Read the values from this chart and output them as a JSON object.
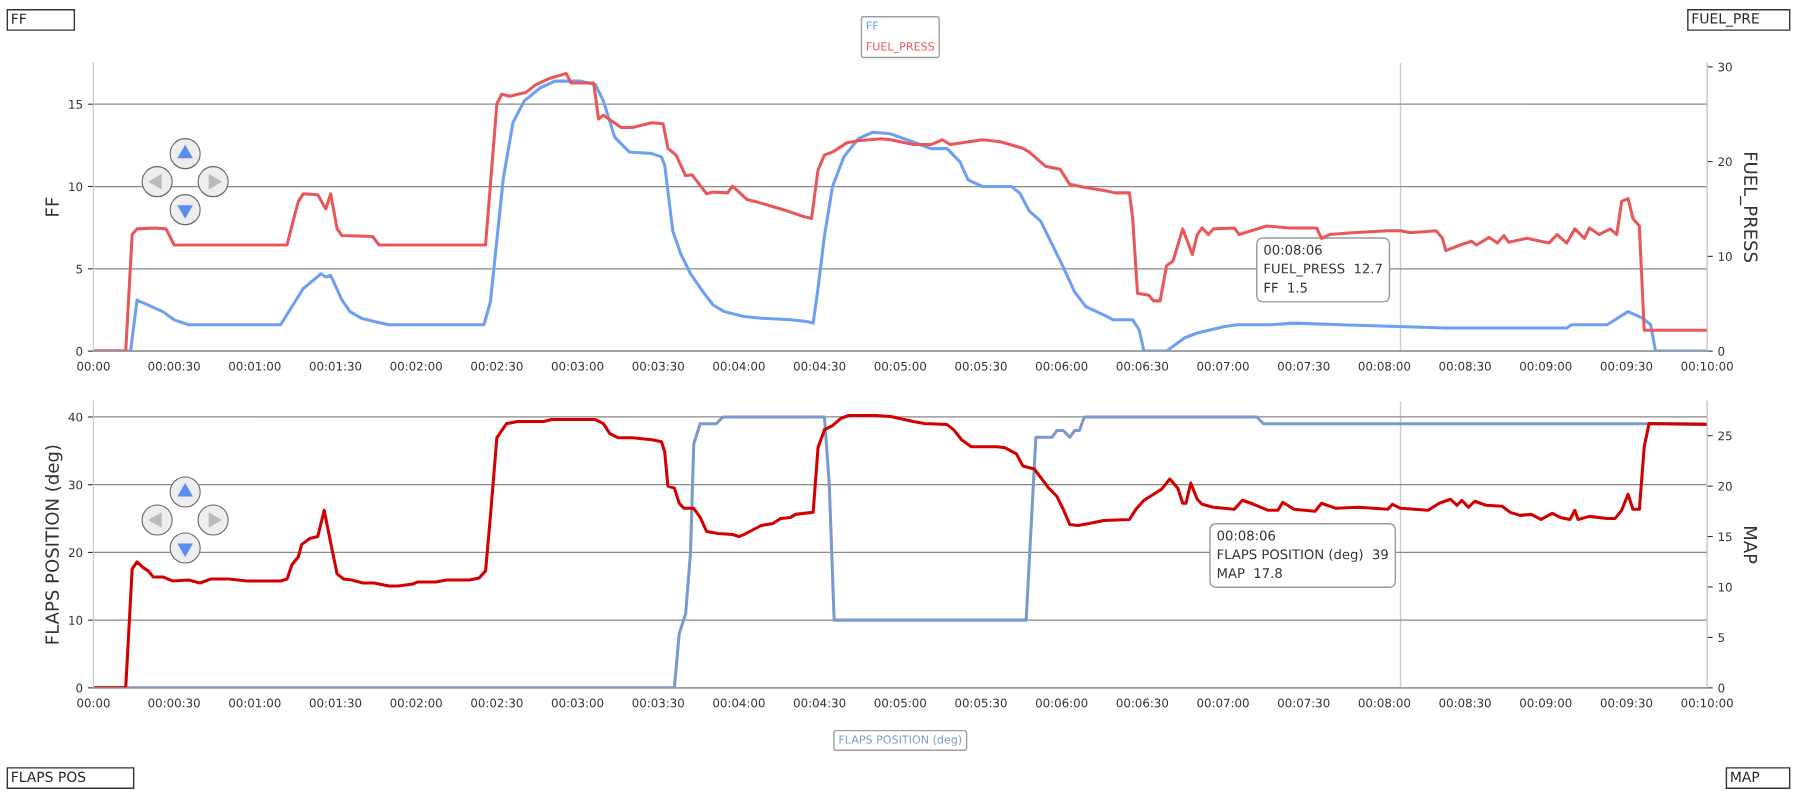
{
  "chart_data": [
    {
      "type": "line",
      "ylabel": "FF",
      "y2label": "FUEL_PRESS",
      "xlim": [
        0,
        10
      ],
      "xticks": [
        {
          "value": 0,
          "label": "00:00"
        },
        {
          "value": 0.5,
          "label": "00:00:30"
        },
        {
          "value": 1,
          "label": "00:01:00"
        },
        {
          "value": 1.5,
          "label": "00:01:30"
        },
        {
          "value": 2,
          "label": "00:02:00"
        },
        {
          "value": 2.5,
          "label": "00:02:30"
        },
        {
          "value": 3,
          "label": "00:03:00"
        },
        {
          "value": 3.5,
          "label": "00:03:30"
        },
        {
          "value": 4,
          "label": "00:04:00"
        },
        {
          "value": 4.5,
          "label": "00:04:30"
        },
        {
          "value": 5,
          "label": "00:05:00"
        },
        {
          "value": 5.5,
          "label": "00:05:30"
        },
        {
          "value": 6,
          "label": "00:06:00"
        },
        {
          "value": 6.5,
          "label": "00:06:30"
        },
        {
          "value": 7,
          "label": "00:07:00"
        },
        {
          "value": 7.5,
          "label": "00:07:30"
        },
        {
          "value": 8,
          "label": "00:08:00"
        },
        {
          "value": 8.5,
          "label": "00:08:30"
        },
        {
          "value": 9,
          "label": "00:09:00"
        },
        {
          "value": 9.5,
          "label": "00:09:30"
        },
        {
          "value": 10,
          "label": "00:10:00"
        }
      ],
      "ylim": [
        0,
        17.5
      ],
      "yticks": [
        0,
        5,
        10,
        15
      ],
      "y2lim": [
        0,
        30.4
      ],
      "y2ticks": [
        0,
        10,
        20,
        30
      ],
      "grid": "y",
      "legend": "top",
      "marker": "none",
      "line_style": "solid",
      "ref_lines": [
        {
          "axis": "x",
          "value": 8.1,
          "color": "#cccccc"
        }
      ],
      "annotations": [
        "FF",
        "FUEL_PRE",
        "00:08:06",
        "FUEL_PRESS  12.7",
        "FF  1.5"
      ],
      "series": [
        {
          "name": "FF",
          "color": "#6f9ff0",
          "x": [
            0,
            0.23,
            0.27,
            0.43,
            0.5,
            0.59,
            1.16,
            1.3,
            1.41,
            1.44,
            1.47,
            1.54,
            1.59,
            1.66,
            1.74,
            1.83,
            2.42,
            2.46,
            2.54,
            2.6,
            2.67,
            2.77,
            2.86,
            3.02,
            3.11,
            3.16,
            3.23,
            3.32,
            3.46,
            3.52,
            3.54,
            3.59,
            3.64,
            3.7,
            3.77,
            3.84,
            3.91,
            4.03,
            4.14,
            4.32,
            4.42,
            4.46,
            4.49,
            4.53,
            4.58,
            4.65,
            4.74,
            4.83,
            4.94,
            5.08,
            5.19,
            5.29,
            5.37,
            5.42,
            5.51,
            5.69,
            5.74,
            5.8,
            5.87,
            5.94,
            6.01,
            6.08,
            6.15,
            6.26,
            6.32,
            6.44,
            6.48,
            6.51,
            6.65,
            6.76,
            6.84,
            7.01,
            7.09,
            7.3,
            7.44,
            7.73,
            8.38,
            9.13,
            9.16,
            9.38,
            9.51,
            9.6,
            9.65,
            9.68,
            10
          ],
          "values": [
            0,
            0,
            3.1,
            2.4,
            1.9,
            1.6,
            1.6,
            3.8,
            4.7,
            4.5,
            4.6,
            3.1,
            2.4,
            2.0,
            1.8,
            1.6,
            1.6,
            3.0,
            10.5,
            13.9,
            15.2,
            16.0,
            16.4,
            16.4,
            16.2,
            15.2,
            13.0,
            12.1,
            12.0,
            11.8,
            11.3,
            7.3,
            5.9,
            4.7,
            3.7,
            2.8,
            2.4,
            2.1,
            2.0,
            1.9,
            1.8,
            1.7,
            3.8,
            7.0,
            10.0,
            11.8,
            12.9,
            13.3,
            13.2,
            12.7,
            12.3,
            12.3,
            11.5,
            10.4,
            10.0,
            10.0,
            9.6,
            8.5,
            7.9,
            6.5,
            5.1,
            3.6,
            2.7,
            2.2,
            1.9,
            1.9,
            1.3,
            0,
            0,
            0.8,
            1.1,
            1.5,
            1.6,
            1.6,
            1.7,
            1.6,
            1.4,
            1.4,
            1.6,
            1.6,
            2.4,
            2.0,
            1.6,
            0,
            0
          ]
        },
        {
          "name": "FUEL_PRESS",
          "color": "#e8585a",
          "axis": "y2",
          "x": [
            0,
            0.2,
            0.24,
            0.27,
            0.38,
            0.45,
            0.5,
            1.2,
            1.24,
            1.27,
            1.3,
            1.39,
            1.44,
            1.47,
            1.51,
            1.54,
            1.73,
            1.77,
            2.43,
            2.5,
            2.53,
            2.58,
            2.63,
            2.68,
            2.74,
            2.83,
            2.93,
            2.96,
            3.1,
            3.13,
            3.16,
            3.27,
            3.34,
            3.46,
            3.53,
            3.56,
            3.61,
            3.67,
            3.71,
            3.8,
            3.84,
            3.93,
            3.96,
            4.05,
            4.12,
            4.28,
            4.4,
            4.45,
            4.49,
            4.53,
            4.58,
            4.67,
            4.74,
            4.88,
            4.94,
            5.08,
            5.19,
            5.26,
            5.31,
            5.51,
            5.62,
            5.76,
            5.8,
            5.9,
            5.99,
            6.05,
            6.14,
            6.28,
            6.33,
            6.42,
            6.44,
            6.47,
            6.54,
            6.57,
            6.61,
            6.65,
            6.69,
            6.75,
            6.81,
            6.84,
            6.87,
            6.91,
            6.94,
            7.07,
            7.1,
            7.27,
            7.41,
            7.58,
            7.61,
            7.66,
            7.8,
            8.02,
            8.1,
            8.16,
            8.32,
            8.36,
            8.38,
            8.47,
            8.54,
            8.57,
            8.65,
            8.7,
            8.74,
            8.77,
            8.88,
            9.02,
            9.07,
            9.13,
            9.18,
            9.24,
            9.27,
            9.33,
            9.4,
            9.44,
            9.47,
            9.51,
            9.54,
            9.58,
            9.61,
            10
          ],
          "values": [
            0,
            0,
            12.3,
            12.9,
            13.0,
            12.9,
            11.2,
            11.2,
            13.9,
            15.8,
            16.6,
            16.5,
            15.0,
            16.6,
            12.9,
            12.2,
            12.1,
            11.2,
            11.2,
            26.1,
            27.1,
            26.9,
            27.1,
            27.3,
            28.1,
            28.8,
            29.3,
            28.3,
            28.3,
            24.5,
            24.9,
            23.6,
            23.6,
            24.1,
            24.0,
            21.4,
            20.7,
            18.5,
            18.6,
            16.6,
            16.8,
            16.7,
            17.4,
            16.0,
            15.7,
            14.9,
            14.2,
            14.0,
            19.1,
            20.7,
            21.0,
            22.0,
            22.2,
            22.4,
            22.3,
            21.8,
            21.8,
            22.3,
            21.8,
            22.3,
            22.1,
            21.4,
            21.0,
            19.5,
            19.2,
            17.6,
            17.3,
            16.9,
            16.7,
            16.7,
            14.0,
            6.1,
            5.9,
            5.3,
            5.3,
            9.0,
            9.5,
            12.9,
            10.2,
            12.3,
            13.0,
            12.3,
            12.9,
            13.0,
            12.3,
            13.2,
            13.0,
            13.0,
            11.9,
            12.3,
            12.5,
            12.7,
            12.7,
            12.5,
            12.7,
            11.9,
            10.6,
            11.2,
            11.6,
            11.2,
            12.0,
            11.4,
            12.2,
            11.5,
            11.9,
            11.4,
            12.3,
            11.4,
            12.9,
            11.9,
            13.0,
            12.3,
            12.9,
            12.3,
            15.8,
            16.1,
            14.0,
            13.2,
            2.2,
            2.2
          ]
        }
      ]
    },
    {
      "type": "line",
      "ylabel": "FLAPS POSITION (deg)",
      "y2label": "MAP",
      "xlim": [
        0,
        10
      ],
      "xticks": [
        {
          "value": 0,
          "label": "00:00"
        },
        {
          "value": 0.5,
          "label": "00:00:30"
        },
        {
          "value": 1,
          "label": "00:01:00"
        },
        {
          "value": 1.5,
          "label": "00:01:30"
        },
        {
          "value": 2,
          "label": "00:02:00"
        },
        {
          "value": 2.5,
          "label": "00:02:30"
        },
        {
          "value": 3,
          "label": "00:03:00"
        },
        {
          "value": 3.5,
          "label": "00:03:30"
        },
        {
          "value": 4,
          "label": "00:04:00"
        },
        {
          "value": 4.5,
          "label": "00:04:30"
        },
        {
          "value": 5,
          "label": "00:05:00"
        },
        {
          "value": 5.5,
          "label": "00:05:30"
        },
        {
          "value": 6,
          "label": "00:06:00"
        },
        {
          "value": 6.5,
          "label": "00:06:30"
        },
        {
          "value": 7,
          "label": "00:07:00"
        },
        {
          "value": 7.5,
          "label": "00:07:30"
        },
        {
          "value": 8,
          "label": "00:08:00"
        },
        {
          "value": 8.5,
          "label": "00:08:30"
        },
        {
          "value": 9,
          "label": "00:09:00"
        },
        {
          "value": 9.5,
          "label": "00:09:30"
        },
        {
          "value": 10,
          "label": "00:10:00"
        }
      ],
      "ylim": [
        0,
        42.3
      ],
      "yticks": [
        0,
        10,
        20,
        30,
        40
      ],
      "y2lim": [
        0,
        28.4
      ],
      "y2ticks": [
        0,
        5,
        10,
        15,
        20,
        25
      ],
      "grid": "y",
      "legend": "bottom",
      "marker": "none",
      "line_style": "solid",
      "ref_lines": [
        {
          "axis": "x",
          "value": 8.1,
          "color": "#cccccc"
        }
      ],
      "annotations": [
        "FLAPS POS",
        "MAP",
        "00:08:06",
        "FLAPS POSITION (deg)  39",
        "MAP  17.8"
      ],
      "series": [
        {
          "name": "FLAPS POSITION (deg)",
          "color": "#7b9acc",
          "x": [
            0,
            3.6,
            3.63,
            3.67,
            3.7,
            3.72,
            3.76,
            3.86,
            3.9,
            4.53,
            4.56,
            4.59,
            5.78,
            5.84,
            5.94,
            5.97,
            6.01,
            6.05,
            6.08,
            6.11,
            6.14,
            7.21,
            7.25,
            10
          ],
          "values": [
            0,
            0,
            8,
            11,
            20,
            36,
            39,
            39,
            40,
            40,
            30,
            10,
            10,
            37,
            37,
            38,
            38,
            37,
            38,
            38,
            40,
            40,
            39,
            39
          ]
        },
        {
          "color": "#d40000",
          "axis": "y2",
          "x": [
            0,
            0.2,
            0.24,
            0.27,
            0.31,
            0.34,
            0.37,
            0.43,
            0.49,
            0.59,
            0.66,
            0.73,
            0.84,
            0.95,
            1.16,
            1.2,
            1.23,
            1.27,
            1.29,
            1.34,
            1.39,
            1.43,
            1.48,
            1.51,
            1.55,
            1.6,
            1.67,
            1.74,
            1.83,
            1.89,
            1.98,
            2.01,
            2.12,
            2.19,
            2.33,
            2.39,
            2.43,
            2.46,
            2.5,
            2.56,
            2.63,
            2.79,
            2.84,
            3.11,
            3.16,
            3.2,
            3.25,
            3.34,
            3.46,
            3.52,
            3.54,
            3.56,
            3.6,
            3.63,
            3.66,
            3.72,
            3.76,
            3.8,
            3.87,
            3.96,
            4.0,
            4.03,
            4.09,
            4.14,
            4.21,
            4.26,
            4.32,
            4.35,
            4.46,
            4.49,
            4.53,
            4.58,
            4.63,
            4.68,
            4.85,
            4.94,
            5.08,
            5.15,
            5.29,
            5.33,
            5.38,
            5.44,
            5.6,
            5.65,
            5.72,
            5.76,
            5.83,
            5.92,
            5.97,
            6.01,
            6.05,
            6.1,
            6.17,
            6.26,
            6.42,
            6.46,
            6.51,
            6.57,
            6.62,
            6.67,
            6.72,
            6.75,
            6.77,
            6.8,
            6.84,
            6.87,
            6.94,
            7.07,
            7.12,
            7.19,
            7.28,
            7.34,
            7.37,
            7.44,
            7.57,
            7.61,
            7.7,
            7.84,
            8.02,
            8.05,
            8.1,
            8.27,
            8.34,
            8.41,
            8.45,
            8.48,
            8.52,
            8.56,
            8.63,
            8.73,
            8.78,
            8.84,
            8.91,
            8.97,
            9.04,
            9.09,
            9.15,
            9.18,
            9.2,
            9.27,
            9.38,
            9.43,
            9.47,
            9.51,
            9.54,
            9.58,
            9.61,
            9.64,
            10
          ],
          "values": [
            0,
            0,
            11.8,
            12.5,
            11.9,
            11.6,
            11.0,
            11.0,
            10.6,
            10.7,
            10.4,
            10.8,
            10.8,
            10.6,
            10.6,
            10.8,
            12.2,
            13.0,
            14.2,
            14.8,
            15.0,
            17.6,
            13.6,
            11.3,
            10.8,
            10.7,
            10.4,
            10.4,
            10.1,
            10.1,
            10.3,
            10.5,
            10.5,
            10.7,
            10.7,
            10.9,
            11.6,
            17.0,
            24.8,
            26.2,
            26.4,
            26.4,
            26.6,
            26.6,
            26.2,
            25.2,
            24.8,
            24.8,
            24.6,
            24.4,
            23.4,
            20.0,
            19.8,
            18.3,
            17.8,
            17.8,
            16.9,
            15.5,
            15.3,
            15.2,
            15.0,
            15.2,
            15.7,
            16.1,
            16.3,
            16.8,
            16.9,
            17.2,
            17.4,
            23.8,
            25.6,
            26.0,
            26.7,
            27.0,
            27.0,
            26.9,
            26.4,
            26.2,
            26.1,
            25.6,
            24.6,
            23.9,
            23.9,
            23.8,
            23.2,
            22.0,
            21.7,
            19.8,
            19.0,
            17.7,
            16.2,
            16.1,
            16.3,
            16.6,
            16.7,
            17.7,
            18.6,
            19.2,
            19.7,
            20.7,
            19.8,
            18.3,
            18.3,
            20.3,
            18.7,
            18.2,
            17.9,
            17.7,
            18.6,
            18.2,
            17.6,
            17.6,
            18.4,
            17.7,
            17.5,
            18.3,
            17.8,
            17.9,
            17.7,
            18.2,
            17.8,
            17.6,
            18.3,
            18.7,
            18.1,
            18.6,
            17.9,
            18.5,
            18.1,
            18.0,
            17.4,
            17.1,
            17.2,
            16.7,
            17.3,
            16.9,
            16.7,
            17.6,
            16.7,
            17.0,
            16.8,
            16.8,
            17.6,
            19.2,
            17.7,
            17.7,
            23.9,
            26.2,
            26.1
          ]
        }
      ]
    }
  ]
}
